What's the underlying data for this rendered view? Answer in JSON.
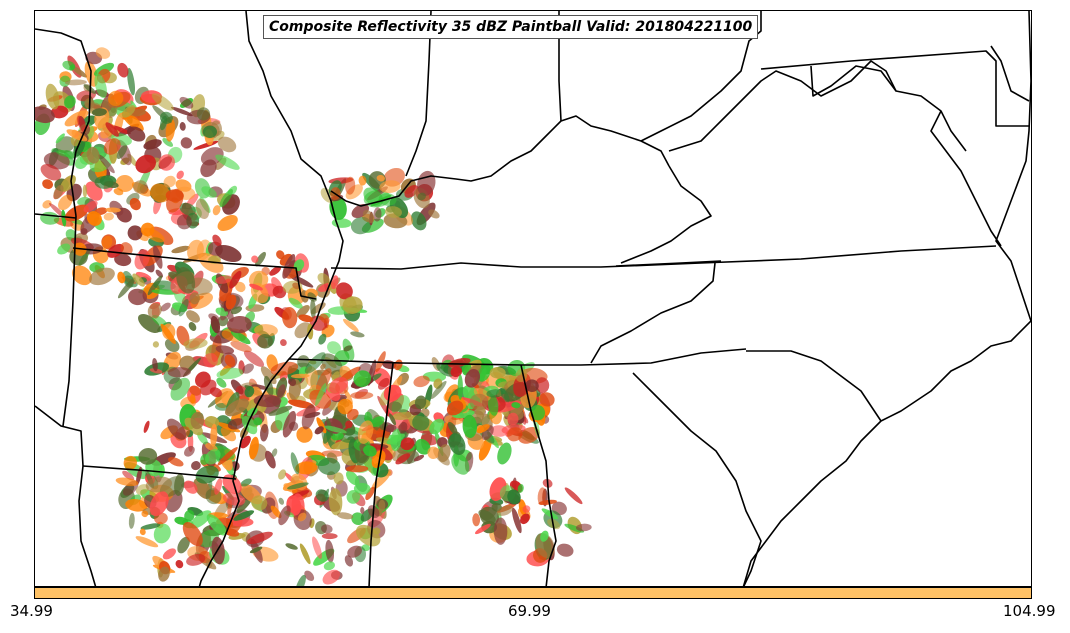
{
  "title": "Composite Reflectivity 35 dBZ Paintball Valid: 201804221100",
  "colorbar": {
    "color": "#FFC266",
    "tick_labels": [
      "34.99",
      "69.99",
      "104.99"
    ]
  },
  "colors": {
    "boundaries": "#000000",
    "paintball_palette": [
      "#FF8000",
      "#E04A10",
      "#CC2020",
      "#FF4A4A",
      "#B5A33A",
      "#2FBF2F",
      "#4FD94F",
      "#2E7D32",
      "#7A2E2E",
      "#8B3A3A",
      "#556B2F",
      "#A0783C",
      "#FF9933"
    ]
  }
}
